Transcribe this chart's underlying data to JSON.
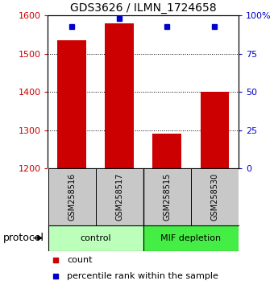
{
  "title": "GDS3626 / ILMN_1724658",
  "samples": [
    "GSM258516",
    "GSM258517",
    "GSM258515",
    "GSM258530"
  ],
  "counts": [
    1535,
    1580,
    1290,
    1400
  ],
  "percentile_ranks": [
    93,
    98,
    93,
    93
  ],
  "ylim_left": [
    1200,
    1600
  ],
  "ylim_right": [
    0,
    100
  ],
  "right_ticks": [
    0,
    25,
    50,
    75,
    100
  ],
  "right_tick_labels": [
    "0",
    "25",
    "50",
    "75",
    "100%"
  ],
  "left_ticks": [
    1200,
    1300,
    1400,
    1500,
    1600
  ],
  "bar_color": "#cc0000",
  "dot_color": "#0000cc",
  "group1_color": "#bbffbb",
  "group2_color": "#44ee44",
  "protocol_label": "protocol",
  "legend_count": "count",
  "legend_pct": "percentile rank within the sample",
  "grid_color": "#000000",
  "tick_color_left": "#cc0000",
  "tick_color_right": "#0000cc",
  "bar_width": 0.6,
  "title_fontsize": 10,
  "tick_fontsize": 8,
  "sample_fontsize": 7,
  "legend_fontsize": 8,
  "protocol_fontsize": 9
}
